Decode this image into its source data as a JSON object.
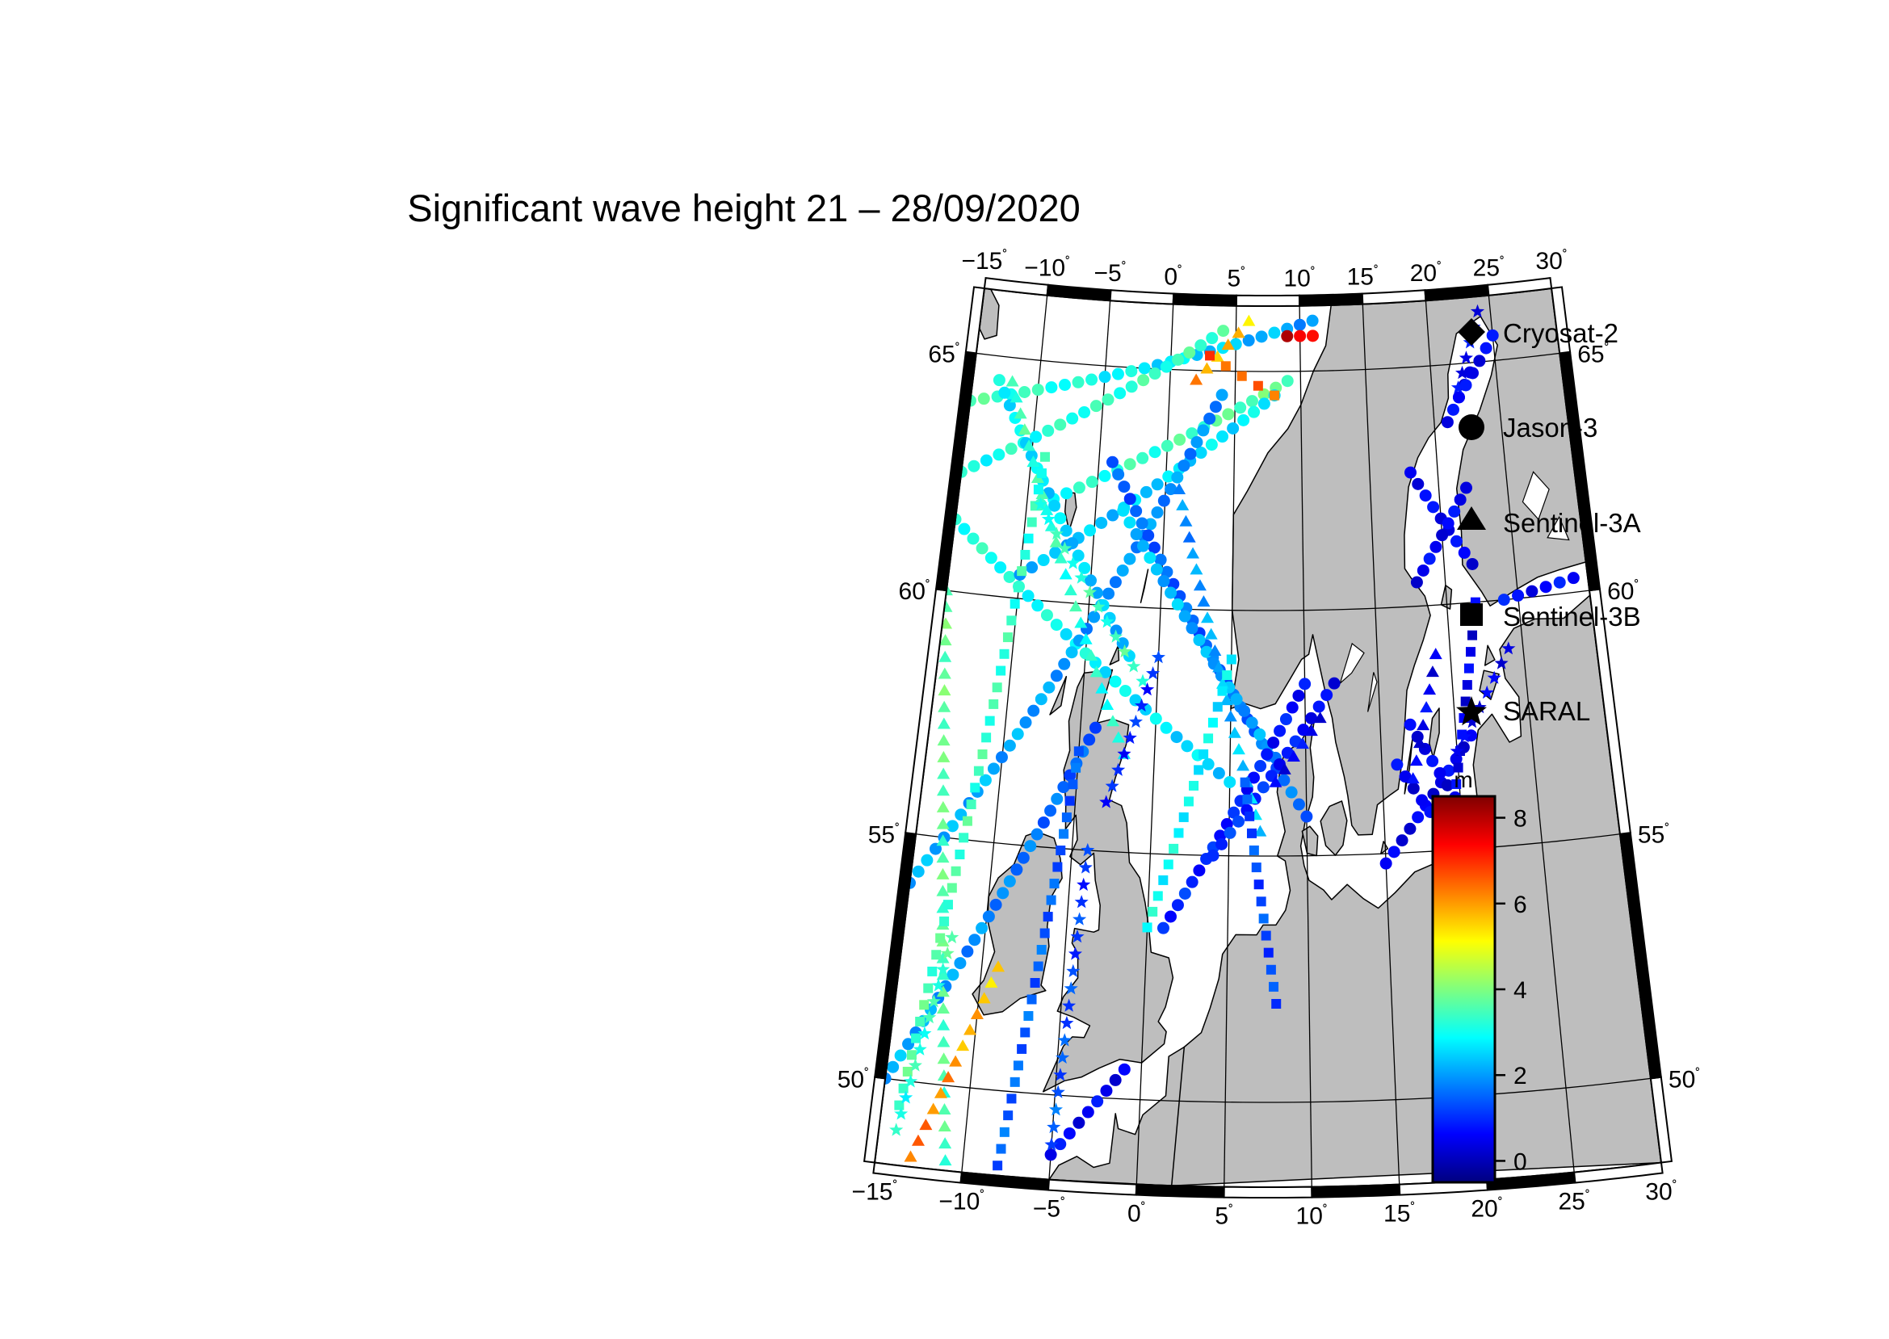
{
  "title": "Significant wave height 21 – 28/09/2020",
  "lon_ticks": [
    "−15",
    "−10",
    "−5",
    "0",
    "5",
    "10",
    "15",
    "20",
    "25",
    "30"
  ],
  "lat_ticks": [
    "65",
    "60",
    "55",
    "50"
  ],
  "degree_symbol": "˚",
  "colors": {
    "land": "#bebebe",
    "sea": "#ffffff",
    "frame": "#000000",
    "colormap": [
      "#00007f",
      "#0000ff",
      "#007fff",
      "#00ffff",
      "#7fff7f",
      "#ffff00",
      "#ff7f00",
      "#ff0000",
      "#7f0000"
    ]
  },
  "legend": {
    "items": [
      {
        "label": "Cryosat-2",
        "symbol": "diamond"
      },
      {
        "label": "Jason-3",
        "symbol": "circle"
      },
      {
        "label": "Sentinel-3A",
        "symbol": "triangle"
      },
      {
        "label": "Sentinel-3B",
        "symbol": "square"
      },
      {
        "label": "SARAL",
        "symbol": "star"
      }
    ]
  },
  "colorbar": {
    "unit": "m",
    "min": -0.5,
    "max": 8.5,
    "ticks": [
      "8",
      "6",
      "4",
      "2",
      "0"
    ],
    "tick_values": [
      8,
      6,
      4,
      2,
      0
    ]
  },
  "map": {
    "lon_range": [
      -15,
      30
    ],
    "lat_range": [
      48.3,
      66.3
    ],
    "projection": "conic",
    "tracks": [
      {
        "satellite": "Jason-3",
        "symbol": "circle",
        "lon": [
          -15,
          11
        ],
        "lat": [
          64.0,
          66.0
        ],
        "hs": [
          3.5,
          2.0
        ]
      },
      {
        "satellite": "Jason-3",
        "symbol": "circle",
        "lon": [
          -15,
          4
        ],
        "lat": [
          62.5,
          65.8
        ],
        "hs": [
          3.0,
          3.5
        ]
      },
      {
        "satellite": "Jason-3",
        "symbol": "circle",
        "lon": [
          -9,
          9
        ],
        "lat": [
          62.0,
          64.8
        ],
        "hs": [
          3.0,
          3.8
        ]
      },
      {
        "satellite": "Jason-3",
        "symbol": "circle",
        "lon": [
          -15,
          5
        ],
        "lat": [
          61.5,
          56.5
        ],
        "hs": [
          3.2,
          2.5
        ]
      },
      {
        "satellite": "Jason-3",
        "symbol": "circle",
        "lon": [
          -10,
          8
        ],
        "lat": [
          60.5,
          64.5
        ],
        "hs": [
          2.2,
          2.8
        ]
      },
      {
        "satellite": "Jason-3",
        "symbol": "circle",
        "lon": [
          -15,
          4
        ],
        "lat": [
          54.0,
          64.5
        ],
        "hs": [
          2.2,
          1.8
        ]
      },
      {
        "satellite": "Jason-3",
        "symbol": "circle",
        "lon": [
          -4,
          10
        ],
        "lat": [
          63.0,
          55.8
        ],
        "hs": [
          1.4,
          1.6
        ]
      },
      {
        "satellite": "Jason-3",
        "symbol": "circle",
        "lon": [
          -3,
          8
        ],
        "lat": [
          62.0,
          57.0
        ],
        "hs": [
          2.4,
          2.0
        ]
      },
      {
        "satellite": "Jason-3",
        "symbol": "circle",
        "lon": [
          -13,
          -2
        ],
        "lat": [
          64.5,
          59.0
        ],
        "hs": [
          2.8,
          2.2
        ]
      },
      {
        "satellite": "Jason-3",
        "symbol": "circle",
        "lon": [
          1,
          10
        ],
        "lat": [
          53.5,
          58.5
        ],
        "hs": [
          1.0,
          0.7
        ]
      },
      {
        "satellite": "Jason-3",
        "symbol": "circle",
        "lon": [
          4,
          12
        ],
        "lat": [
          55.0,
          58.5
        ],
        "hs": [
          1.2,
          0.5
        ]
      },
      {
        "satellite": "Jason-3",
        "symbol": "circle",
        "lon": [
          -15,
          -4
        ],
        "lat": [
          50.0,
          57.5
        ],
        "hs": [
          2.2,
          1.4
        ]
      },
      {
        "satellite": "Jason-3",
        "symbol": "circle",
        "lon": [
          -5,
          -1
        ],
        "lat": [
          48.8,
          50.6
        ],
        "hs": [
          0.6,
          0.5
        ]
      },
      {
        "satellite": "Jason-3",
        "symbol": "circle",
        "lon": [
          15,
          21
        ],
        "lat": [
          54.8,
          57.3
        ],
        "hs": [
          0.4,
          0.5
        ]
      },
      {
        "satellite": "Jason-3",
        "symbol": "circle",
        "lon": [
          16,
          20
        ],
        "lat": [
          56.8,
          54.8
        ],
        "hs": [
          0.5,
          0.4
        ]
      },
      {
        "satellite": "Jason-3",
        "symbol": "circle",
        "lon": [
          17,
          21
        ],
        "lat": [
          57.6,
          55.3
        ],
        "hs": [
          0.5,
          0.4
        ]
      },
      {
        "satellite": "Jason-3",
        "symbol": "circle",
        "lon": [
          18,
          22
        ],
        "lat": [
          62.8,
          60.8
        ],
        "hs": [
          0.6,
          0.5
        ]
      },
      {
        "satellite": "Jason-3",
        "symbol": "circle",
        "lon": [
          18,
          22
        ],
        "lat": [
          60.5,
          62.4
        ],
        "hs": [
          0.5,
          0.6
        ]
      },
      {
        "satellite": "Jason-3",
        "symbol": "circle",
        "lon": [
          21,
          23
        ],
        "lat": [
          63.8,
          64.8
        ],
        "hs": [
          0.6,
          0.5
        ]
      },
      {
        "satellite": "Jason-3",
        "symbol": "circle",
        "lon": [
          22,
          25
        ],
        "lat": [
          64.3,
          65.5
        ],
        "hs": [
          0.5,
          0.6
        ]
      },
      {
        "satellite": "Jason-3",
        "symbol": "circle",
        "lon": [
          24,
          29
        ],
        "lat": [
          60.0,
          60.3
        ],
        "hs": [
          0.7,
          0.6
        ]
      },
      {
        "satellite": "Jason-3",
        "symbol": "circle",
        "lon": [
          9,
          11
        ],
        "lat": [
          65.7,
          65.7
        ],
        "hs": [
          7.8,
          7.5
        ]
      },
      {
        "satellite": "Sentinel-3A",
        "symbol": "triangle",
        "lon": [
          -12,
          -2
        ],
        "lat": [
          64.5,
          57.0
        ],
        "hs": [
          3.5,
          3.0
        ]
      },
      {
        "satellite": "Sentinel-3A",
        "symbol": "triangle",
        "lon": [
          -11,
          -15
        ],
        "lat": [
          48.5,
          60.0
        ],
        "hs": [
          3.5,
          3.8
        ]
      },
      {
        "satellite": "Sentinel-3A",
        "symbol": "triangle",
        "lon": [
          -13,
          -9
        ],
        "lat": [
          48.5,
          52.5
        ],
        "hs": [
          6.5,
          5.5
        ]
      },
      {
        "satellite": "Sentinel-3A",
        "symbol": "triangle",
        "lon": [
          1,
          7
        ],
        "lat": [
          62.5,
          55.5
        ],
        "hs": [
          1.8,
          2.5
        ]
      },
      {
        "satellite": "Sentinel-3A",
        "symbol": "triangle",
        "lon": [
          17,
          19
        ],
        "lat": [
          56.5,
          59.0
        ],
        "hs": [
          0.5,
          0.5
        ]
      },
      {
        "satellite": "Sentinel-3A",
        "symbol": "triangle",
        "lon": [
          2,
          6
        ],
        "lat": [
          64.8,
          66.0
        ],
        "hs": [
          6.0,
          5.5
        ]
      },
      {
        "satellite": "Sentinel-3A",
        "symbol": "triangle",
        "lon": [
          8,
          11
        ],
        "lat": [
          56.5,
          57.8
        ],
        "hs": [
          0.6,
          0.5
        ]
      },
      {
        "satellite": "Sentinel-3B",
        "symbol": "square",
        "lon": [
          -14,
          -9
        ],
        "lat": [
          49.5,
          63.0
        ],
        "hs": [
          3.6,
          3.2
        ]
      },
      {
        "satellite": "Sentinel-3B",
        "symbol": "square",
        "lon": [
          -8,
          -5
        ],
        "lat": [
          48.5,
          57.0
        ],
        "hs": [
          1.5,
          1.4
        ]
      },
      {
        "satellite": "Sentinel-3B",
        "symbol": "square",
        "lon": [
          0,
          5
        ],
        "lat": [
          53.5,
          59.0
        ],
        "hs": [
          3.0,
          2.7
        ]
      },
      {
        "satellite": "Sentinel-3B",
        "symbol": "square",
        "lon": [
          6,
          8
        ],
        "lat": [
          56.5,
          52.0
        ],
        "hs": [
          1.3,
          1.2
        ]
      },
      {
        "satellite": "Sentinel-3B",
        "symbol": "square",
        "lon": [
          19,
          22
        ],
        "lat": [
          55.0,
          60.0
        ],
        "hs": [
          0.5,
          0.4
        ]
      },
      {
        "satellite": "Sentinel-3B",
        "symbol": "square",
        "lon": [
          3,
          8
        ],
        "lat": [
          65.3,
          64.5
        ],
        "hs": [
          6.8,
          6.2
        ]
      },
      {
        "satellite": "SARAL",
        "symbol": "star",
        "lon": [
          -9,
          -1
        ],
        "lat": [
          62.0,
          58.5
        ],
        "hs": [
          3.2,
          3.5
        ]
      },
      {
        "satellite": "SARAL",
        "symbol": "star",
        "lon": [
          -5,
          -4
        ],
        "lat": [
          49.0,
          55.0
        ],
        "hs": [
          1.5,
          1.0
        ]
      },
      {
        "satellite": "SARAL",
        "symbol": "star",
        "lon": [
          -3,
          0
        ],
        "lat": [
          56.0,
          59.0
        ],
        "hs": [
          0.8,
          1.0
        ]
      },
      {
        "satellite": "SARAL",
        "symbol": "star",
        "lon": [
          20,
          24
        ],
        "lat": [
          57.0,
          59.0
        ],
        "hs": [
          0.4,
          0.5
        ]
      },
      {
        "satellite": "SARAL",
        "symbol": "star",
        "lon": [
          -14,
          -12
        ],
        "lat": [
          49.0,
          53.0
        ],
        "hs": [
          3.0,
          3.5
        ]
      },
      {
        "satellite": "SARAL",
        "symbol": "star",
        "lon": [
          22,
          24
        ],
        "lat": [
          64.5,
          66.0
        ],
        "hs": [
          0.6,
          0.6
        ]
      }
    ]
  }
}
